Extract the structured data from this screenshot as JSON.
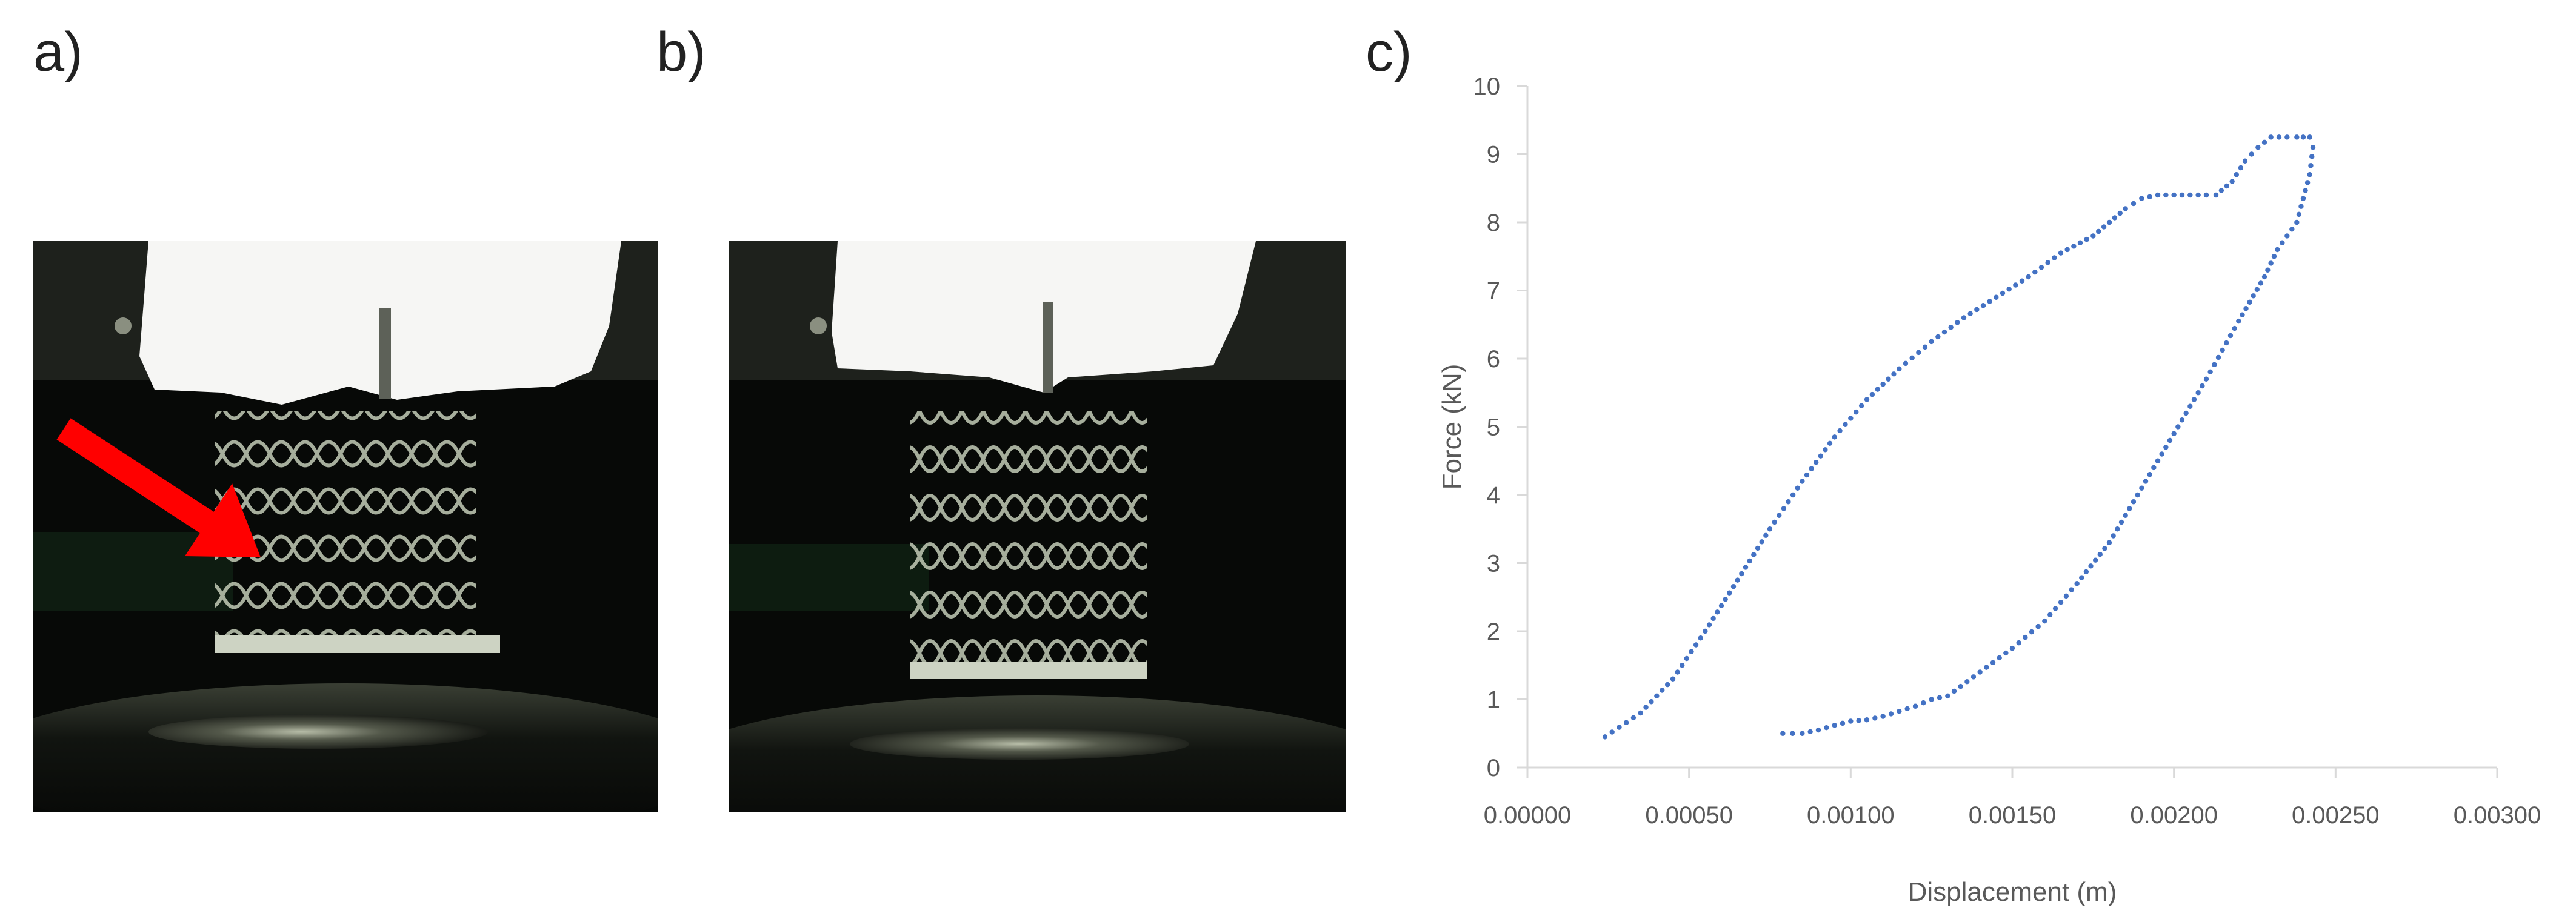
{
  "panels": {
    "a_label": "a)",
    "b_label": "b)",
    "c_label": "c)"
  },
  "colors": {
    "series": "#4472C4",
    "arrow": "#FF0000",
    "axis": "#D9D9D9",
    "text": "#595959"
  },
  "chart_data": {
    "type": "scatter",
    "title": "",
    "xlabel": "Displacement (m)",
    "ylabel": "Force (kN)",
    "xlim": [
      0,
      0.003
    ],
    "ylim": [
      0,
      10
    ],
    "xticks": [
      "0.00000",
      "0.00050",
      "0.00100",
      "0.00150",
      "0.00200",
      "0.00250",
      "0.00300"
    ],
    "yticks": [
      "0",
      "1",
      "2",
      "3",
      "4",
      "5",
      "6",
      "7",
      "8",
      "9",
      "10"
    ],
    "grid": false,
    "legend": "none",
    "series": [
      {
        "marker": "dot",
        "x": [
          0.00024,
          0.00035,
          0.00045,
          0.00055,
          0.00065,
          0.00075,
          0.00085,
          0.00095,
          0.00105,
          0.00115,
          0.00125,
          0.00135,
          0.00145,
          0.00155,
          0.00165,
          0.00175,
          0.0018,
          0.00185,
          0.0019,
          0.00195,
          0.002,
          0.00205,
          0.0021,
          0.00213,
          0.00218,
          0.00222,
          0.00226,
          0.0023,
          0.00235,
          0.00238,
          0.0024,
          0.00242,
          0.00243,
          0.00242,
          0.0024,
          0.00238,
          0.00235,
          0.00232,
          0.00228,
          0.0022,
          0.0021,
          0.002,
          0.0019,
          0.0018,
          0.0017,
          0.0016,
          0.0015,
          0.0014,
          0.0013,
          0.00125,
          0.0012,
          0.0011,
          0.00105,
          0.001,
          0.00095,
          0.0009,
          0.00085,
          0.00079
        ],
        "y": [
          0.45,
          0.8,
          1.3,
          2.0,
          2.75,
          3.5,
          4.2,
          4.85,
          5.4,
          5.85,
          6.25,
          6.6,
          6.9,
          7.2,
          7.55,
          7.8,
          8.0,
          8.2,
          8.35,
          8.4,
          8.4,
          8.4,
          8.4,
          8.4,
          8.6,
          8.9,
          9.1,
          9.25,
          9.25,
          9.25,
          9.25,
          9.25,
          9.1,
          8.7,
          8.35,
          8.0,
          7.8,
          7.6,
          7.2,
          6.55,
          5.7,
          4.9,
          4.1,
          3.3,
          2.7,
          2.15,
          1.75,
          1.4,
          1.05,
          1.0,
          0.9,
          0.75,
          0.7,
          0.68,
          0.62,
          0.55,
          0.5,
          0.5
        ]
      }
    ]
  }
}
